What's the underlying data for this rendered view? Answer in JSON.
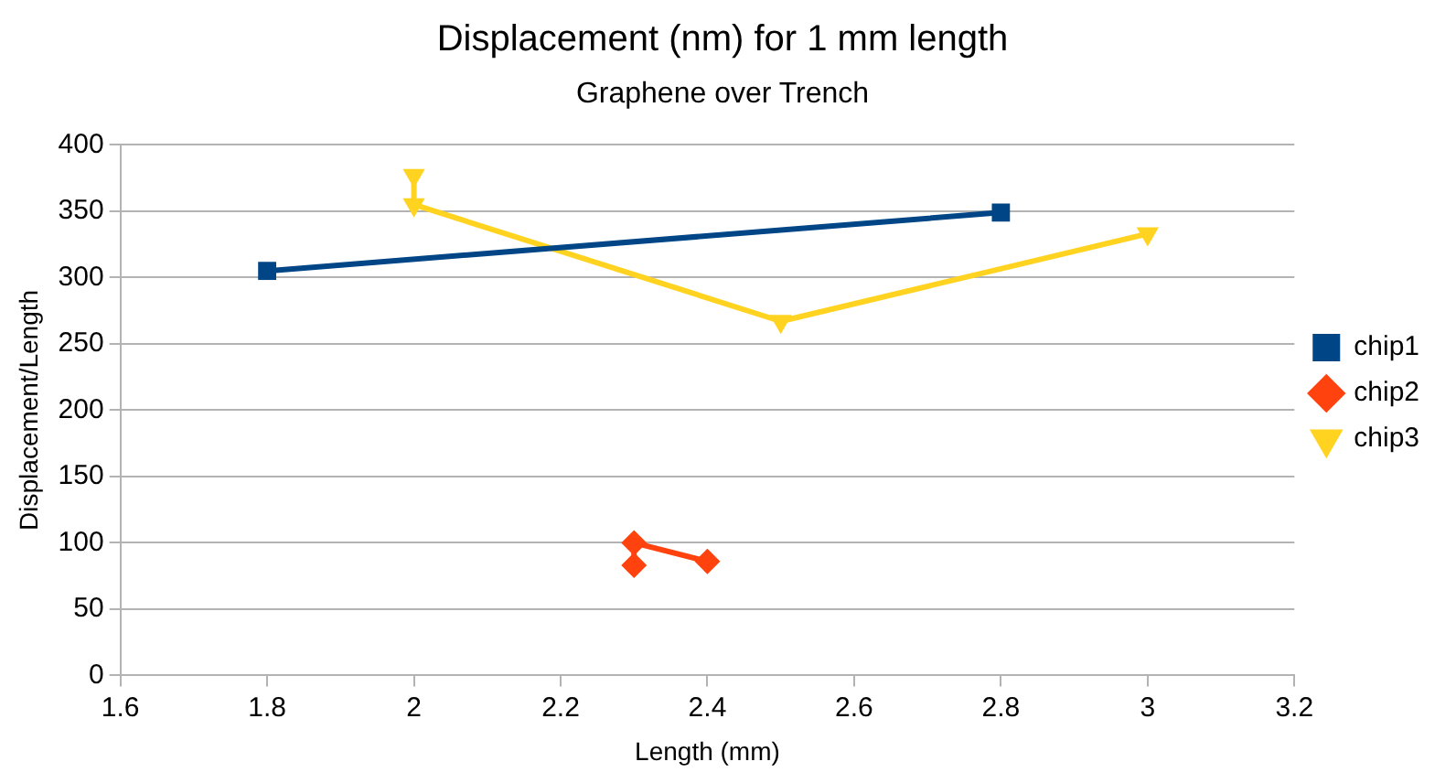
{
  "chart_data": {
    "type": "line",
    "title": "Displacement (nm) for 1 mm length",
    "subtitle": "Graphene over Trench",
    "xlabel": "Length (mm)",
    "ylabel": "Displacement/Length",
    "xlim": [
      1.6,
      3.2
    ],
    "xticks": [
      1.6,
      1.8,
      2,
      2.2,
      2.4,
      2.6,
      2.8,
      3,
      3.2
    ],
    "ylim": [
      0,
      400
    ],
    "yticks": [
      0,
      50,
      100,
      150,
      200,
      250,
      300,
      350,
      400
    ],
    "grid": "y",
    "legend": "right",
    "series": [
      {
        "name": "chip1",
        "color": "#004586",
        "marker": "square",
        "x": [
          1.8,
          2.8
        ],
        "values": [
          305,
          349
        ]
      },
      {
        "name": "chip2",
        "color": "#ff420e",
        "marker": "diamond",
        "x": [
          2.3,
          2.3,
          2.4
        ],
        "values": [
          83,
          100,
          86
        ]
      },
      {
        "name": "chip3",
        "color": "#ffd320",
        "marker": "triangle",
        "x": [
          2,
          2,
          2.5,
          3
        ],
        "values": [
          377,
          355,
          267,
          333
        ]
      }
    ]
  }
}
